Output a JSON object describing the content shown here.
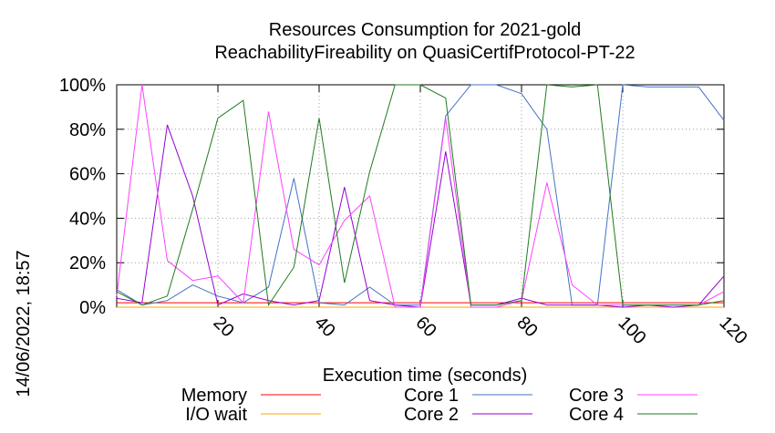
{
  "chart_data": {
    "type": "line",
    "title_line1": "Resources Consumption for 2021-gold",
    "title_line2": "ReachabilityFireability on QuasiCertifProtocol-PT-22",
    "xlabel": "Execution time (seconds)",
    "ylabel": "",
    "side_label": "14/06/2022, 18:57",
    "xlim": [
      0,
      120
    ],
    "ylim": [
      0,
      100
    ],
    "x_ticks": [
      20,
      40,
      60,
      80,
      100,
      120
    ],
    "y_ticks": [
      {
        "value": 0,
        "label": "0%"
      },
      {
        "value": 20,
        "label": "20%"
      },
      {
        "value": 40,
        "label": "40%"
      },
      {
        "value": 60,
        "label": "60%"
      },
      {
        "value": 80,
        "label": "80%"
      },
      {
        "value": 100,
        "label": "100%"
      }
    ],
    "grid": true,
    "legend_position": "bottom",
    "x": [
      0,
      5,
      10,
      15,
      20,
      25,
      30,
      35,
      40,
      45,
      50,
      55,
      60,
      65,
      70,
      75,
      80,
      85,
      90,
      95,
      100,
      105,
      110,
      115,
      120
    ],
    "series": [
      {
        "name": "Memory",
        "color": "#ff0000",
        "values": [
          2,
          2,
          2,
          2,
          2,
          2,
          2,
          2,
          2,
          2,
          2,
          2,
          2,
          2,
          2,
          2,
          2,
          2,
          2,
          2,
          2,
          2,
          2,
          2,
          2
        ]
      },
      {
        "name": "I/O wait",
        "color": "#ffa500",
        "values": [
          0,
          0,
          0,
          0,
          0,
          0,
          0,
          0,
          0,
          0,
          0,
          0,
          0,
          0,
          0,
          0,
          0,
          0,
          0,
          0,
          0,
          0,
          0,
          0,
          0
        ]
      },
      {
        "name": "Core 1",
        "color": "#4472c4",
        "values": [
          8,
          1,
          3,
          10,
          5,
          2,
          9,
          58,
          2,
          1,
          9,
          1,
          1,
          86,
          100,
          100,
          96,
          80,
          1,
          1,
          100,
          99,
          99,
          99,
          84
        ]
      },
      {
        "name": "Core 2",
        "color": "#9400d3",
        "values": [
          4,
          2,
          82,
          50,
          1,
          6,
          3,
          1,
          3,
          54,
          3,
          1,
          0,
          70,
          1,
          1,
          4,
          1,
          1,
          1,
          0,
          1,
          0,
          1,
          14
        ]
      },
      {
        "name": "Core 3",
        "color": "#ff40ff",
        "values": [
          5,
          100,
          21,
          12,
          14,
          2,
          88,
          26,
          19,
          39,
          50,
          0,
          0,
          85,
          0,
          0,
          3,
          56,
          10,
          1,
          1,
          1,
          1,
          1,
          7
        ]
      },
      {
        "name": "Core 4",
        "color": "#1f7a1f",
        "values": [
          7,
          1,
          5,
          44,
          85,
          93,
          1,
          18,
          85,
          11,
          61,
          100,
          100,
          94,
          1,
          1,
          3,
          100,
          99,
          100,
          1,
          1,
          1,
          1,
          3
        ]
      }
    ]
  }
}
